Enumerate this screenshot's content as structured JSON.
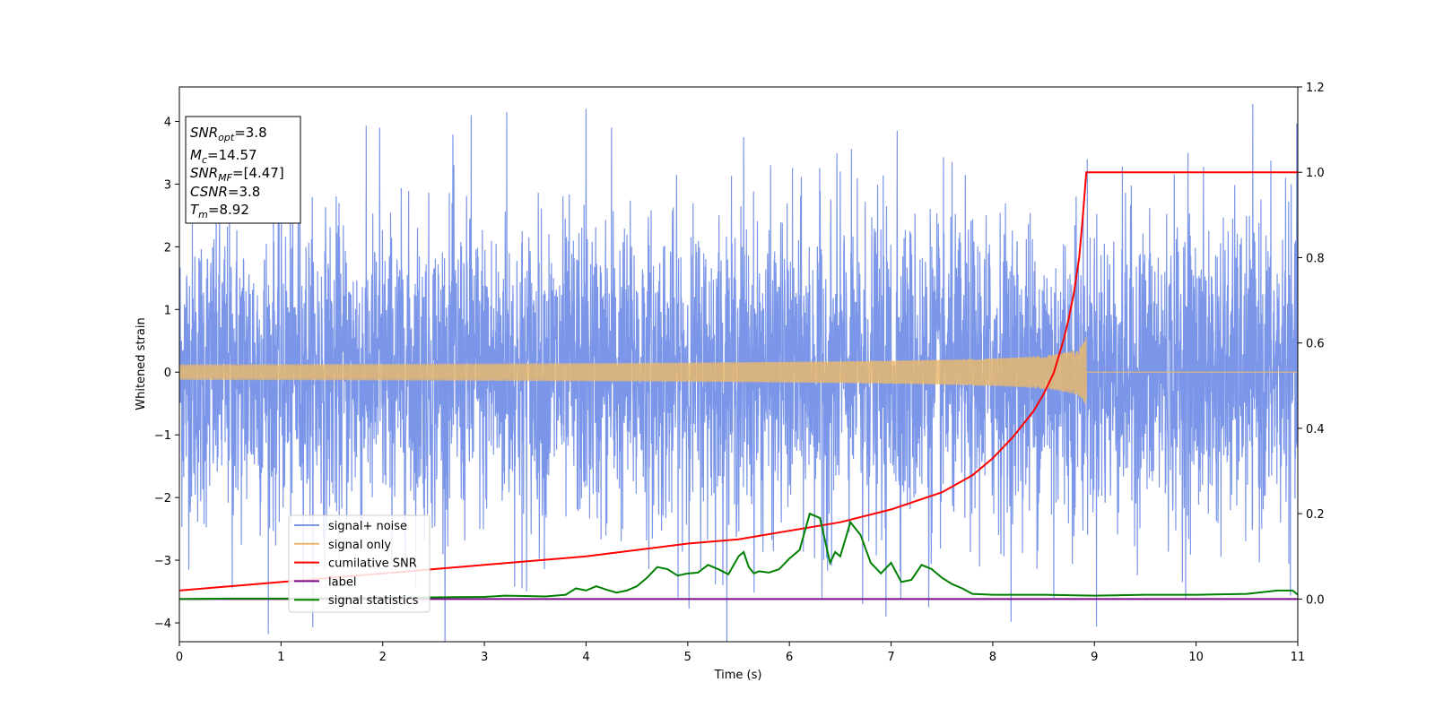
{
  "chart_data": {
    "type": "line",
    "title": "",
    "xlabel": "Time (s)",
    "ylabel": "Whitened strain",
    "y2label": "",
    "xlim": [
      0,
      11
    ],
    "ylim": [
      -4.3,
      4.55
    ],
    "y2lim": [
      -0.1,
      1.2
    ],
    "x_ticks": [
      0,
      1,
      2,
      3,
      4,
      5,
      6,
      7,
      8,
      9,
      10,
      11
    ],
    "y_ticks": [
      -4,
      -3,
      -2,
      -1,
      0,
      1,
      2,
      3,
      4
    ],
    "y2_ticks": [
      "0.0",
      "0.2",
      "0.4",
      "0.6",
      "0.8",
      "1.0",
      "1.2"
    ],
    "grid": false,
    "legend_position": "lower-left",
    "info_box": {
      "position": "top-left",
      "lines": [
        {
          "sym": "SNR",
          "sub": "opt",
          "val": "=3.8"
        },
        {
          "sym": "M",
          "sub": "c",
          "val": "=14.57"
        },
        {
          "sym": "SNR",
          "sub": "MF",
          "val": "=[4.47]"
        },
        {
          "sym": "CSNR",
          "sub": "",
          "val": "=3.8"
        },
        {
          "sym": "T",
          "sub": "m",
          "val": "=8.92"
        }
      ]
    },
    "series": [
      {
        "name": "signal+ noise",
        "axis": "left",
        "color": "#7b96e8",
        "style": "noise",
        "amplitude_sigma": 1.2,
        "sample_rate_hz": 400,
        "peaks": [
          [
            0.52,
            -3.45
          ],
          [
            1.17,
            3.0
          ],
          [
            1.97,
            3.9
          ],
          [
            2.7,
            3.3
          ],
          [
            2.87,
            4.1
          ],
          [
            3.22,
            4.15
          ],
          [
            3.37,
            -3.45
          ],
          [
            4.0,
            4.2
          ],
          [
            4.25,
            3.9
          ],
          [
            5.55,
            3.75
          ],
          [
            6.32,
            -3.6
          ],
          [
            6.5,
            3.2
          ],
          [
            6.72,
            -3.7
          ],
          [
            6.95,
            -3.9
          ],
          [
            7.06,
            3.85
          ],
          [
            7.37,
            -3.75
          ],
          [
            8.6,
            -3.6
          ],
          [
            8.82,
            2.8
          ],
          [
            9.92,
            3.5
          ],
          [
            10.88,
            3.1
          ]
        ]
      },
      {
        "name": "signal only",
        "axis": "left",
        "color": "#e8b86e",
        "style": "chirp",
        "merger_time": 8.92,
        "amplitude_at_merger": 0.58
      },
      {
        "name": "cumilative SNR",
        "axis": "right",
        "color": "#ff0000",
        "x": [
          0,
          1,
          2,
          3,
          4,
          5,
          5.5,
          6,
          6.5,
          7,
          7.5,
          7.8,
          8.0,
          8.2,
          8.4,
          8.5,
          8.6,
          8.7,
          8.75,
          8.8,
          8.85,
          8.88,
          8.9,
          8.92,
          11
        ],
        "y": [
          0.02,
          0.04,
          0.06,
          0.08,
          0.1,
          0.13,
          0.14,
          0.16,
          0.18,
          0.21,
          0.25,
          0.29,
          0.33,
          0.38,
          0.44,
          0.48,
          0.53,
          0.61,
          0.66,
          0.72,
          0.8,
          0.88,
          0.94,
          1.0,
          1.0
        ]
      },
      {
        "name": "label",
        "axis": "right",
        "color": "#7b0a8a",
        "x": [
          0,
          11
        ],
        "y": [
          0.0,
          0.0
        ]
      },
      {
        "name": "signal statistics",
        "axis": "right",
        "color": "#008000",
        "x": [
          0,
          0.5,
          1.0,
          1.5,
          2.0,
          2.5,
          3.0,
          3.2,
          3.4,
          3.6,
          3.8,
          3.9,
          4.0,
          4.1,
          4.2,
          4.3,
          4.4,
          4.5,
          4.6,
          4.7,
          4.8,
          4.9,
          5.0,
          5.1,
          5.2,
          5.3,
          5.4,
          5.5,
          5.55,
          5.6,
          5.65,
          5.7,
          5.8,
          5.9,
          6.0,
          6.1,
          6.2,
          6.3,
          6.4,
          6.45,
          6.5,
          6.6,
          6.7,
          6.8,
          6.9,
          7.0,
          7.1,
          7.2,
          7.3,
          7.4,
          7.5,
          7.6,
          7.7,
          7.8,
          8.0,
          8.5,
          9.0,
          9.5,
          10.0,
          10.5,
          10.8,
          10.95,
          11
        ],
        "y": [
          0.0,
          0.001,
          0.001,
          0.002,
          0.003,
          0.004,
          0.005,
          0.008,
          0.007,
          0.006,
          0.01,
          0.025,
          0.02,
          0.03,
          0.022,
          0.015,
          0.02,
          0.03,
          0.05,
          0.075,
          0.07,
          0.055,
          0.06,
          0.062,
          0.08,
          0.07,
          0.058,
          0.1,
          0.11,
          0.075,
          0.06,
          0.065,
          0.062,
          0.07,
          0.095,
          0.115,
          0.2,
          0.19,
          0.085,
          0.11,
          0.1,
          0.18,
          0.15,
          0.085,
          0.06,
          0.085,
          0.04,
          0.045,
          0.08,
          0.07,
          0.05,
          0.035,
          0.025,
          0.012,
          0.01,
          0.01,
          0.008,
          0.01,
          0.01,
          0.012,
          0.02,
          0.02,
          0.01
        ]
      }
    ]
  }
}
